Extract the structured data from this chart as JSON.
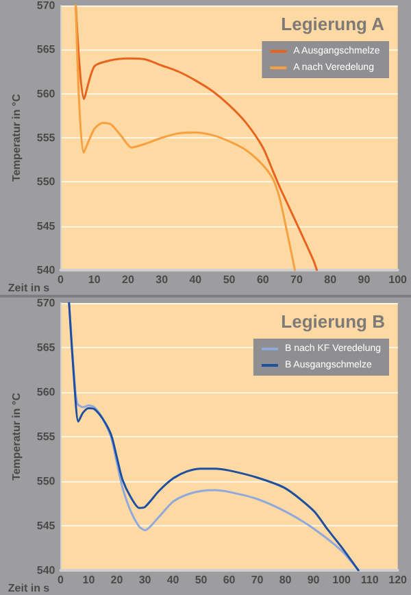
{
  "chart_data": [
    {
      "type": "line",
      "title": "Legierung A",
      "xlabel": "Zeit in s",
      "ylabel": "Temperatur in °C",
      "xlim": [
        0,
        100
      ],
      "xticks": [
        0,
        10,
        20,
        30,
        40,
        50,
        60,
        70,
        80,
        90,
        100
      ],
      "ylim": [
        540,
        570
      ],
      "yticks": [
        540,
        545,
        550,
        555,
        560,
        565,
        570
      ],
      "grid": "y",
      "legend": "top right",
      "marker": "none",
      "line_style": "solid",
      "series": [
        {
          "name": "A Ausgangschmelze",
          "color": "#e8641e",
          "x": [
            4.5,
            6.9,
            10,
            15,
            20,
            25,
            30,
            35,
            40,
            45,
            50,
            55,
            60,
            63,
            65,
            70,
            75,
            76
          ],
          "values": [
            570,
            559.4,
            563.1,
            563.8,
            564,
            563.9,
            563.2,
            562.5,
            561.5,
            560.3,
            558.7,
            556.7,
            553.9,
            551.2,
            549.4,
            545.3,
            541.1,
            540
          ]
        },
        {
          "name": "A nach Veredelung",
          "color": "#f7a040",
          "x": [
            4.5,
            6.8,
            10,
            12.5,
            15,
            18,
            21,
            25,
            30,
            35,
            40,
            45,
            50,
            55,
            60,
            63,
            65,
            67.5,
            69.5
          ],
          "values": [
            570,
            553.3,
            556,
            556.7,
            556.5,
            555.2,
            553.9,
            554.3,
            555,
            555.5,
            555.6,
            555.3,
            554.6,
            553.6,
            551.9,
            550.3,
            548.1,
            543.7,
            540
          ]
        }
      ]
    },
    {
      "type": "line",
      "title": "Legierung B",
      "xlabel": "Zeit in s",
      "ylabel": "Temperatur in °C",
      "xlim": [
        0,
        120
      ],
      "xticks": [
        0,
        10,
        20,
        30,
        40,
        50,
        60,
        70,
        80,
        90,
        100,
        110,
        120
      ],
      "ylim": [
        540,
        570
      ],
      "yticks": [
        540,
        545,
        550,
        555,
        560,
        565,
        570
      ],
      "grid": "y",
      "legend": "top right",
      "marker": "none",
      "line_style": "solid",
      "series": [
        {
          "name": "B nach KF Veredelung",
          "color": "#8fa8dd",
          "x": [
            3,
            5,
            6,
            8,
            10,
            12,
            15,
            18,
            20,
            22,
            25,
            28,
            30,
            35,
            40,
            45,
            50,
            55,
            60,
            70,
            80,
            90,
            100,
            106
          ],
          "values": [
            570,
            561,
            558.7,
            558.3,
            558.5,
            558.3,
            557,
            554.9,
            552.1,
            549.3,
            546.6,
            544.9,
            544.5,
            546,
            547.7,
            548.5,
            548.9,
            549,
            548.8,
            548,
            546.6,
            544.7,
            542.2,
            540
          ]
        },
        {
          "name": "B Ausgangschmelze",
          "color": "#1f4fa0",
          "x": [
            3,
            5,
            6.3,
            8,
            10,
            12,
            15,
            18,
            20,
            22,
            25,
            28,
            30,
            35,
            40,
            45,
            50,
            55,
            60,
            70,
            80,
            90,
            95,
            100,
            106
          ],
          "values": [
            570,
            560.4,
            556.7,
            557.7,
            558.2,
            558.1,
            557,
            555.2,
            552.7,
            550.2,
            548.2,
            547,
            547.1,
            548.9,
            550.3,
            551.1,
            551.4,
            551.4,
            551.2,
            550.4,
            549.2,
            546.7,
            544.6,
            542.6,
            540
          ]
        }
      ]
    }
  ]
}
